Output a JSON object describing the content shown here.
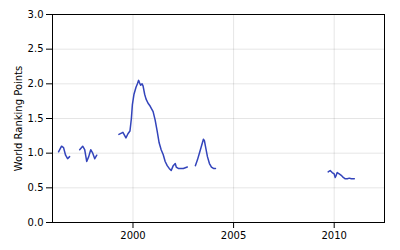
{
  "chart_data": {
    "type": "line",
    "ylabel": "World Ranking Points",
    "x": [
      1996.3,
      1996.45,
      1996.55,
      1996.65,
      1996.75,
      1996.85,
      null,
      1997.35,
      1997.5,
      1997.6,
      1997.7,
      1997.8,
      1997.9,
      1998.0,
      1998.1,
      1998.2,
      null,
      1999.3,
      1999.5,
      1999.65,
      1999.75,
      1999.85,
      1999.92,
      1999.97,
      2000.05,
      2000.1,
      2000.15,
      2000.22,
      2000.28,
      2000.32,
      2000.38,
      2000.45,
      2000.5,
      2000.58,
      2000.65,
      2000.75,
      2000.85,
      2001.0,
      2001.1,
      2001.2,
      2001.3,
      2001.4,
      2001.5,
      2001.6,
      2001.7,
      2001.8,
      2001.9,
      2002.0,
      2002.1,
      2002.15,
      2002.25,
      2002.5,
      2002.7,
      null,
      2003.1,
      2003.2,
      2003.3,
      2003.4,
      2003.5,
      2003.55,
      2003.6,
      2003.7,
      2003.8,
      2003.9,
      2004.0,
      2004.1,
      null,
      2009.7,
      2009.8,
      2009.9,
      2010.0,
      2010.05,
      2010.1,
      2010.15,
      2010.25,
      2010.35,
      2010.45,
      2010.55,
      2010.65,
      2010.75,
      2010.85,
      2011.0
    ],
    "values": [
      1.02,
      1.1,
      1.08,
      0.97,
      0.92,
      0.95,
      null,
      1.05,
      1.1,
      1.05,
      0.88,
      0.95,
      1.05,
      1.0,
      0.92,
      0.97,
      null,
      1.27,
      1.3,
      1.22,
      1.28,
      1.32,
      1.5,
      1.7,
      1.85,
      1.9,
      1.95,
      2.0,
      2.05,
      2.02,
      1.98,
      2.0,
      1.97,
      1.85,
      1.78,
      1.72,
      1.68,
      1.6,
      1.48,
      1.32,
      1.15,
      1.05,
      0.98,
      0.88,
      0.82,
      0.78,
      0.75,
      0.82,
      0.85,
      0.8,
      0.78,
      0.78,
      0.8,
      null,
      0.82,
      0.9,
      1.0,
      1.1,
      1.2,
      1.18,
      1.1,
      0.95,
      0.85,
      0.8,
      0.78,
      0.78,
      null,
      0.73,
      0.75,
      0.72,
      0.7,
      0.65,
      0.68,
      0.72,
      0.7,
      0.68,
      0.65,
      0.63,
      0.63,
      0.64,
      0.63,
      0.63
    ],
    "color": "#3344bb",
    "xlim": [
      1996.0,
      2012.5
    ],
    "xticks": [
      2000,
      2005,
      2010
    ],
    "ylim": [
      0,
      3
    ],
    "yticks": [
      {
        "value": 0,
        "label": "0.0"
      },
      0.5,
      {
        "value": 1.0,
        "label": "1.0"
      },
      1.5,
      {
        "value": 2.0,
        "label": "2.0"
      },
      2.5,
      {
        "value": 3.0,
        "label": "3.0"
      }
    ],
    "grid": true
  }
}
